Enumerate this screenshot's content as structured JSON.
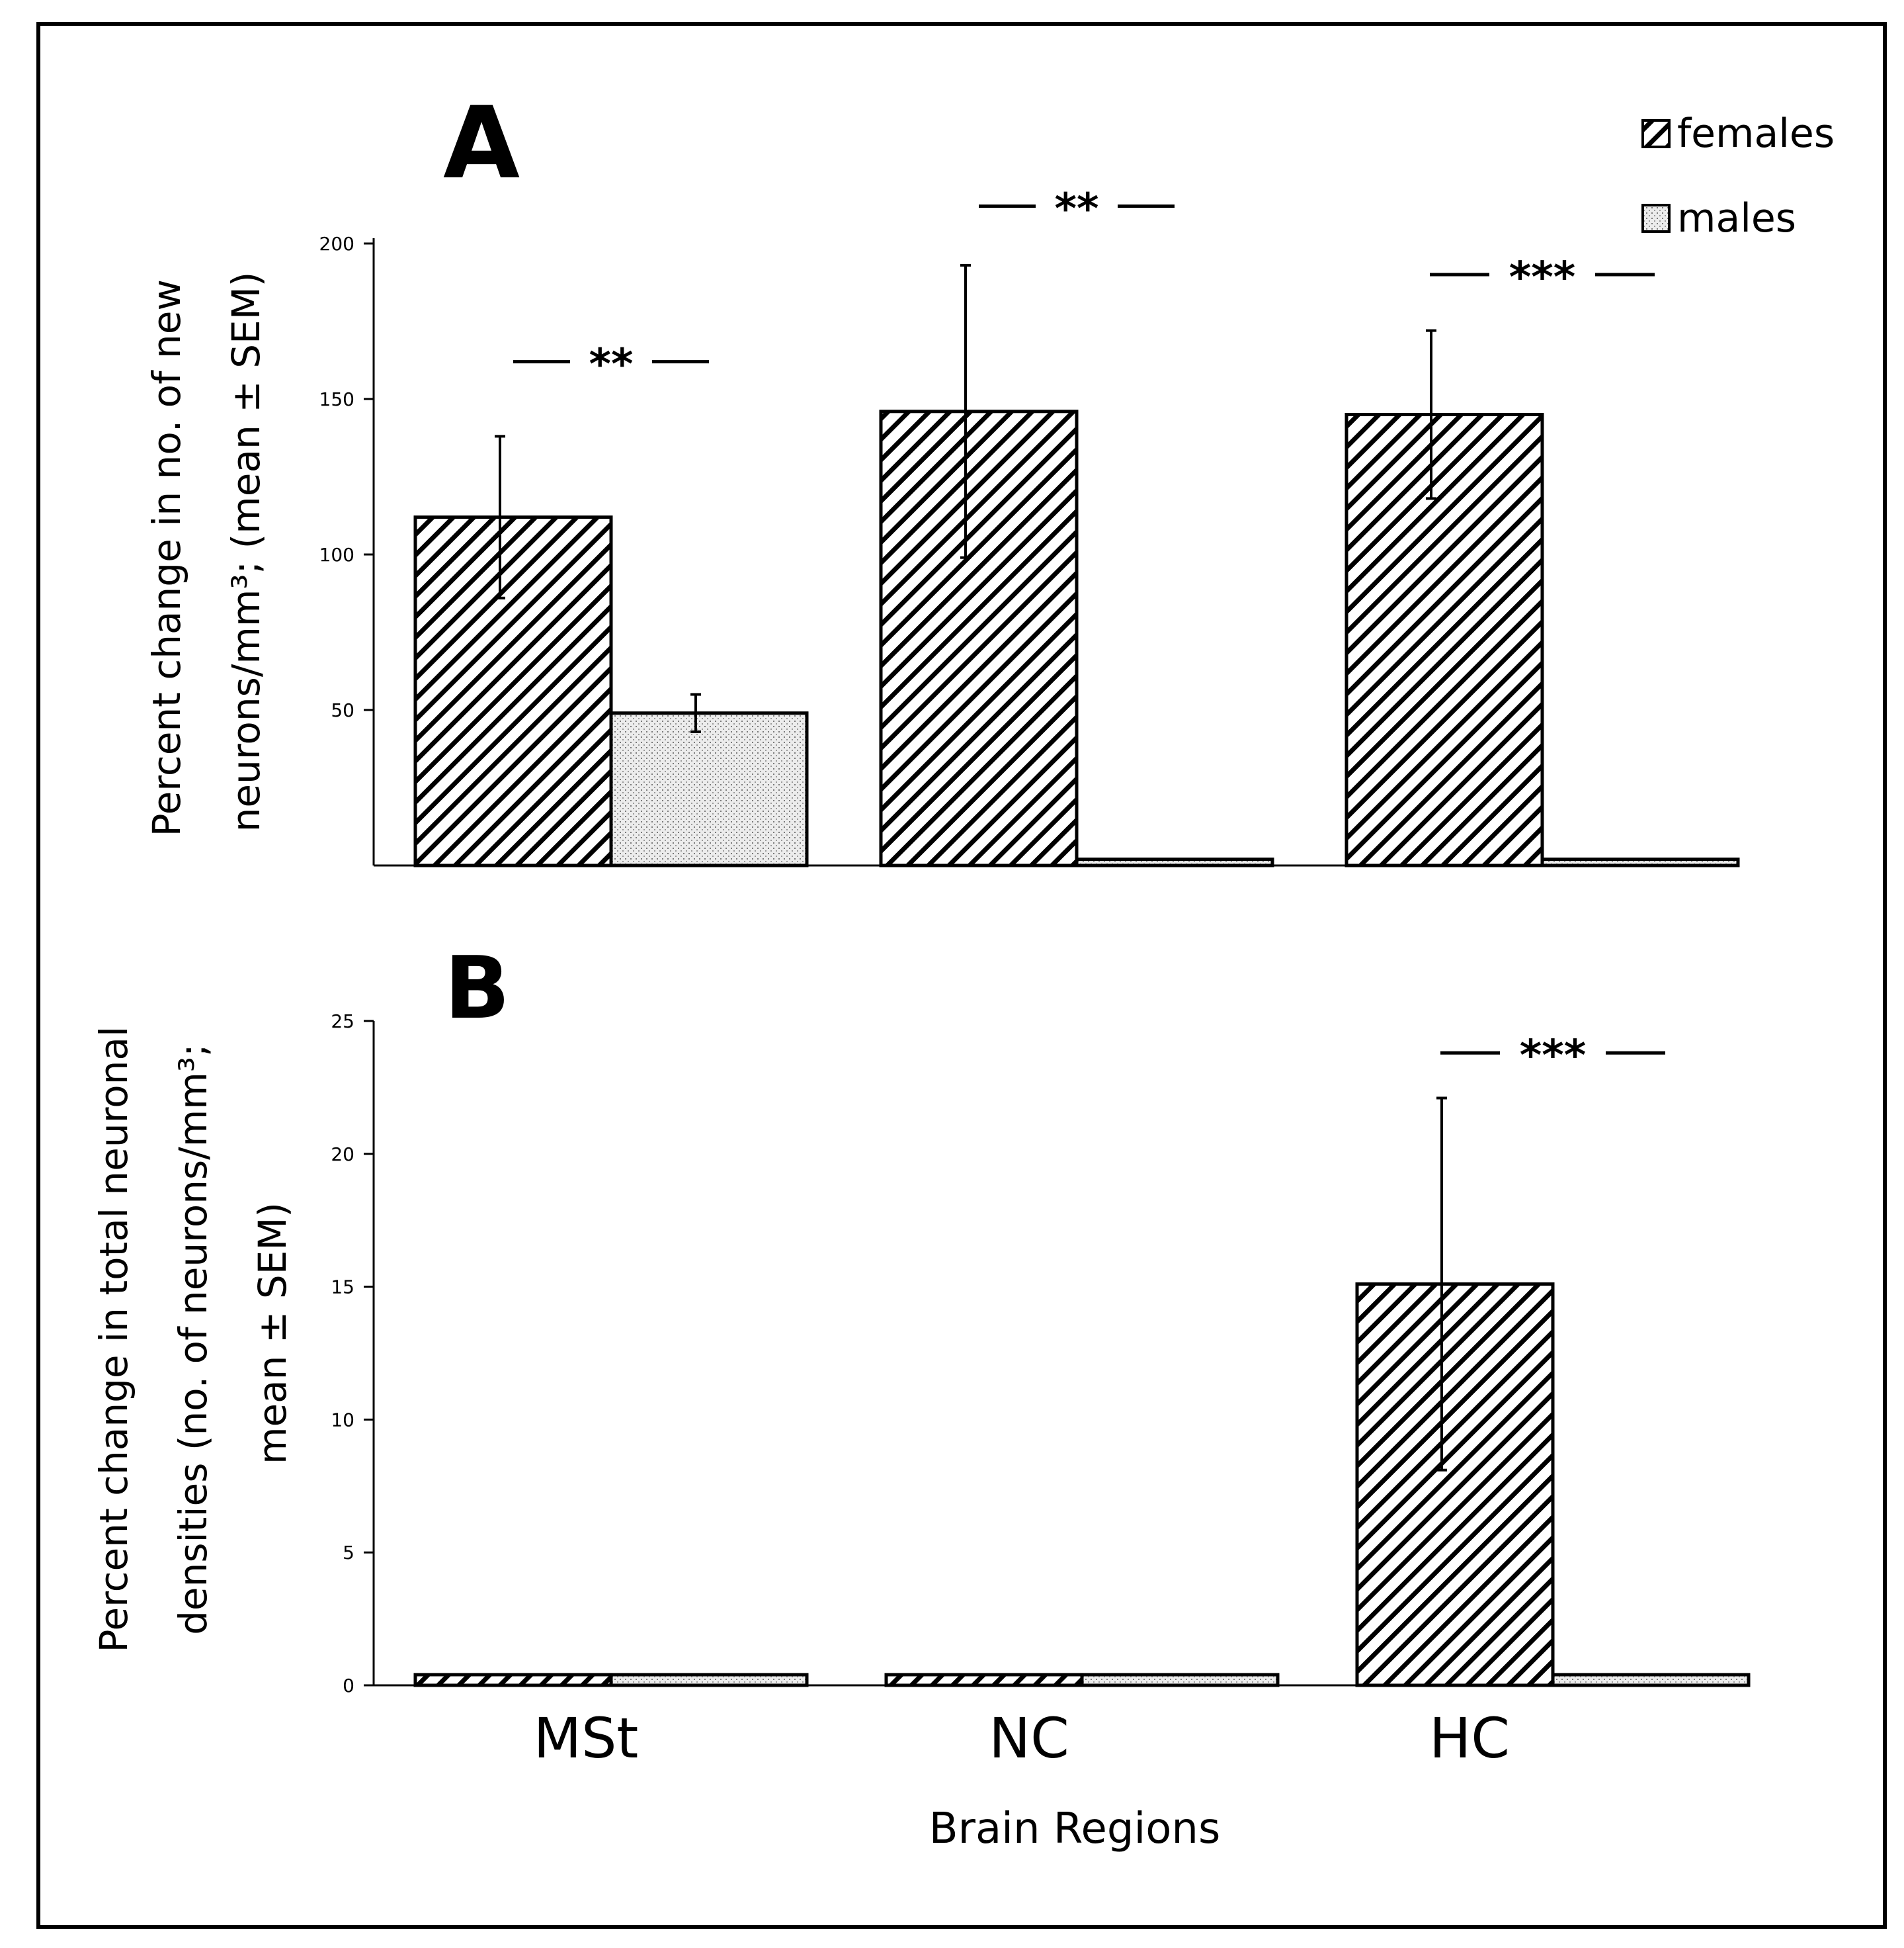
{
  "figure": {
    "x_axis_title": "Brain Regions",
    "categories": [
      "MSt",
      "NC",
      "HC"
    ],
    "legend": [
      {
        "name": "females",
        "pattern": "hatch"
      },
      {
        "name": "males",
        "pattern": "dots"
      }
    ]
  },
  "chart_data": [
    {
      "type": "bar",
      "panel_label": "A",
      "title": "",
      "xlabel": "Brain Regions",
      "ylabel_lines": [
        "Percent change in no. of new",
        "neurons/mm³; (mean  ± SEM)"
      ],
      "categories": [
        "MSt",
        "NC",
        "HC"
      ],
      "ylim": [
        0,
        200
      ],
      "yticks": [
        50,
        100,
        150,
        200
      ],
      "series": [
        {
          "name": "females",
          "values": [
            112,
            146,
            145
          ],
          "errors": [
            26,
            47,
            27
          ]
        },
        {
          "name": "males",
          "values": [
            49,
            2,
            2
          ],
          "errors": [
            6,
            0,
            0
          ]
        }
      ],
      "annotations": [
        {
          "category": "MSt",
          "text": "**",
          "y": 162
        },
        {
          "category": "NC",
          "text": "**",
          "y": 212
        },
        {
          "category": "HC",
          "text": "***",
          "y": 190
        }
      ]
    },
    {
      "type": "bar",
      "panel_label": "B",
      "title": "",
      "xlabel": "Brain Regions",
      "ylabel_lines": [
        "Percent change in total neuronal",
        "densities (no. of neurons/mm³;",
        "mean ± SEM)"
      ],
      "categories": [
        "MSt",
        "NC",
        "HC"
      ],
      "ylim": [
        0,
        25
      ],
      "yticks": [
        0,
        5,
        10,
        15,
        20,
        25
      ],
      "series": [
        {
          "name": "females",
          "values": [
            0.4,
            0.4,
            15.1
          ],
          "errors": [
            0,
            0,
            7
          ]
        },
        {
          "name": "males",
          "values": [
            0.4,
            0.4,
            0.4
          ],
          "errors": [
            0,
            0,
            0
          ]
        }
      ],
      "annotations": [
        {
          "category": "HC",
          "text": "***",
          "y": 23.8
        }
      ]
    }
  ]
}
